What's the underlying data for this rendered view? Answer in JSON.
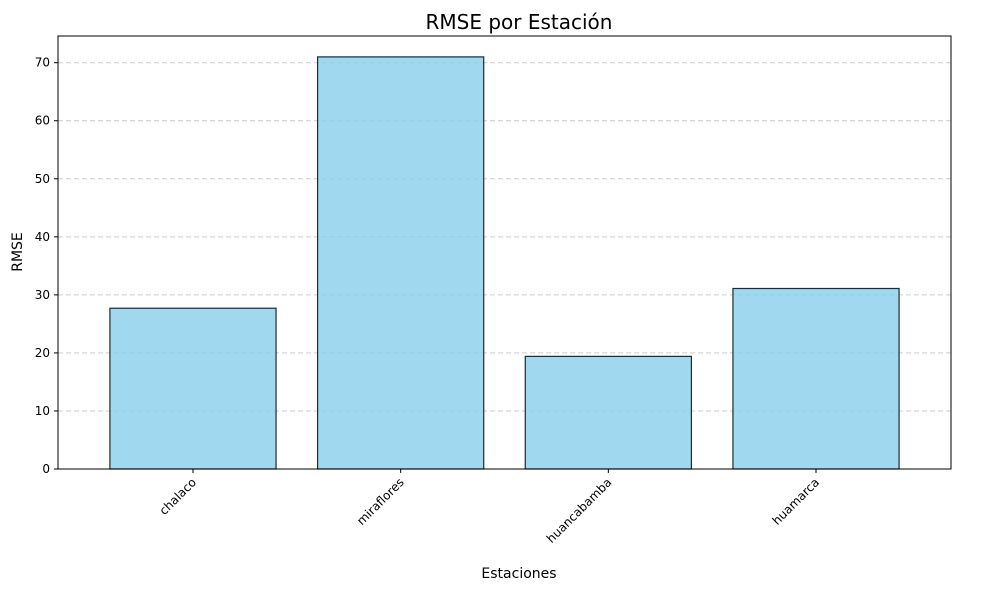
{
  "chart_data": {
    "type": "bar",
    "title": "RMSE por Estación",
    "xlabel": "Estaciones",
    "ylabel": "RMSE",
    "categories": [
      "chalaco",
      "miraflores",
      "huancabamba",
      "huamarca"
    ],
    "values": [
      27.7,
      71.0,
      19.4,
      31.1
    ],
    "ylim": [
      0,
      74.6
    ],
    "yticks": [
      0,
      10,
      20,
      30,
      40,
      50,
      60,
      70
    ],
    "grid": "y-dashed",
    "colors": {
      "bar_fill": "#87ceeb",
      "bar_edge": "#1f2a33",
      "grid": "#cccccc",
      "axis": "#000000"
    }
  }
}
